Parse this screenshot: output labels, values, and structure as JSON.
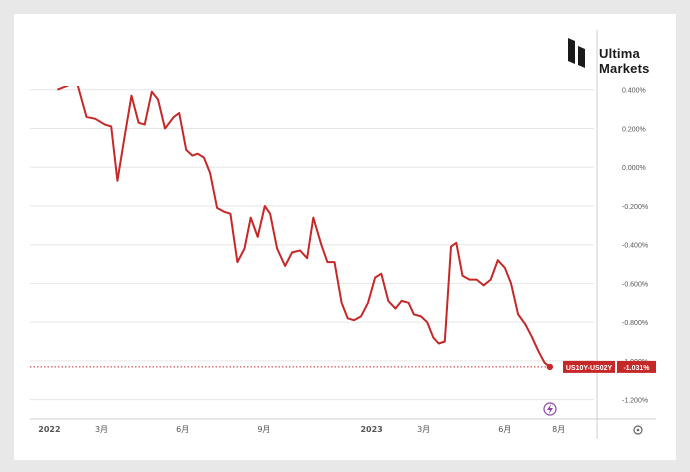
{
  "brand": {
    "line1": "Ultima",
    "line2": "Markets"
  },
  "colors": {
    "line": "#c62828",
    "accent_label": "#c62828",
    "grid": "#e6e6e6",
    "axis_text": "#555555",
    "lightning": "#8e44ad"
  },
  "chart_data": {
    "type": "line",
    "title": "",
    "xlabel": "",
    "ylabel": "",
    "y_unit": "%",
    "ylim": [
      -1.3,
      0.44
    ],
    "y_ticks": [
      0.4,
      0.2,
      0.0,
      -0.2,
      -0.4,
      -0.6,
      -0.8,
      -1.0,
      -1.2
    ],
    "y_tick_labels": [
      "0.400%",
      "0.200%",
      "0.000%",
      "-0.200%",
      "-0.400%",
      "-0.600%",
      "-0.800%",
      "-1.000%",
      "-1.200%"
    ],
    "x_ticks": [
      {
        "label": "2022",
        "date": "2022-01-01"
      },
      {
        "label": "3月",
        "date": "2022-03-01"
      },
      {
        "label": "6月",
        "date": "2022-06-01"
      },
      {
        "label": "9月",
        "date": "2022-09-01"
      },
      {
        "label": "2023",
        "date": "2023-01-01"
      },
      {
        "label": "3月",
        "date": "2023-03-01"
      },
      {
        "label": "6月",
        "date": "2023-06-01"
      },
      {
        "label": "8月",
        "date": "2023-08-01"
      }
    ],
    "xlim": [
      "2021-12-10",
      "2023-09-10"
    ],
    "series": [
      {
        "name": "US10Y-US02Y",
        "last_value_label": "-1.031%",
        "points": [
          [
            "2022-01-10",
            0.4
          ],
          [
            "2022-02-01",
            0.44
          ],
          [
            "2022-02-12",
            0.26
          ],
          [
            "2022-02-22",
            0.25
          ],
          [
            "2022-03-05",
            0.22
          ],
          [
            "2022-03-12",
            0.21
          ],
          [
            "2022-03-19",
            -0.07
          ],
          [
            "2022-03-28",
            0.18
          ],
          [
            "2022-04-04",
            0.37
          ],
          [
            "2022-04-12",
            0.23
          ],
          [
            "2022-04-19",
            0.22
          ],
          [
            "2022-04-27",
            0.39
          ],
          [
            "2022-05-04",
            0.35
          ],
          [
            "2022-05-12",
            0.2
          ],
          [
            "2022-05-22",
            0.26
          ],
          [
            "2022-05-28",
            0.28
          ],
          [
            "2022-06-05",
            0.09
          ],
          [
            "2022-06-12",
            0.06
          ],
          [
            "2022-06-18",
            0.07
          ],
          [
            "2022-06-25",
            0.05
          ],
          [
            "2022-07-02",
            -0.03
          ],
          [
            "2022-07-10",
            -0.21
          ],
          [
            "2022-07-18",
            -0.23
          ],
          [
            "2022-07-25",
            -0.24
          ],
          [
            "2022-08-02",
            -0.49
          ],
          [
            "2022-08-10",
            -0.42
          ],
          [
            "2022-08-17",
            -0.26
          ],
          [
            "2022-08-25",
            -0.36
          ],
          [
            "2022-09-02",
            -0.2
          ],
          [
            "2022-09-08",
            -0.24
          ],
          [
            "2022-09-16",
            -0.42
          ],
          [
            "2022-09-25",
            -0.51
          ],
          [
            "2022-10-03",
            -0.44
          ],
          [
            "2022-10-12",
            -0.43
          ],
          [
            "2022-10-20",
            -0.47
          ],
          [
            "2022-10-27",
            -0.26
          ],
          [
            "2022-11-05",
            -0.4
          ],
          [
            "2022-11-12",
            -0.49
          ],
          [
            "2022-11-20",
            -0.49
          ],
          [
            "2022-11-28",
            -0.7
          ],
          [
            "2022-12-05",
            -0.78
          ],
          [
            "2022-12-12",
            -0.79
          ],
          [
            "2022-12-20",
            -0.77
          ],
          [
            "2022-12-28",
            -0.7
          ],
          [
            "2023-01-05",
            -0.57
          ],
          [
            "2023-01-12",
            -0.55
          ],
          [
            "2023-01-20",
            -0.69
          ],
          [
            "2023-01-28",
            -0.73
          ],
          [
            "2023-02-04",
            -0.69
          ],
          [
            "2023-02-12",
            -0.7
          ],
          [
            "2023-02-18",
            -0.76
          ],
          [
            "2023-02-26",
            -0.77
          ],
          [
            "2023-03-05",
            -0.8
          ],
          [
            "2023-03-12",
            -0.88
          ],
          [
            "2023-03-18",
            -0.91
          ],
          [
            "2023-03-25",
            -0.9
          ],
          [
            "2023-04-01",
            -0.41
          ],
          [
            "2023-04-07",
            -0.39
          ],
          [
            "2023-04-14",
            -0.56
          ],
          [
            "2023-04-22",
            -0.58
          ],
          [
            "2023-04-30",
            -0.58
          ],
          [
            "2023-05-08",
            -0.61
          ],
          [
            "2023-05-16",
            -0.58
          ],
          [
            "2023-05-24",
            -0.48
          ],
          [
            "2023-06-01",
            -0.52
          ],
          [
            "2023-06-08",
            -0.6
          ],
          [
            "2023-06-16",
            -0.76
          ],
          [
            "2023-06-24",
            -0.81
          ],
          [
            "2023-07-01",
            -0.87
          ],
          [
            "2023-07-09",
            -0.95
          ],
          [
            "2023-07-16",
            -1.01
          ],
          [
            "2023-07-22",
            -1.031
          ]
        ]
      }
    ]
  }
}
